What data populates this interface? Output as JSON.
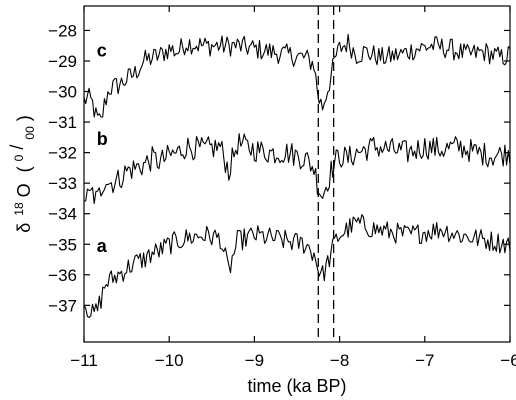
{
  "chart_data": {
    "type": "line",
    "xlabel": "time (ka BP)",
    "ylabel": {
      "prefix": "δ",
      "isotope": "18",
      "element": "O",
      "unit_open": "(",
      "unit_num": "0",
      "unit_den": "00",
      "unit_close": ")"
    },
    "xlim": [
      -11,
      -6
    ],
    "ylim": [
      -38.2,
      -27.2
    ],
    "xticks": [
      -11,
      -10,
      -9,
      -8,
      -7,
      -6
    ],
    "xtick_labels": [
      "−11",
      "−10",
      "−9",
      "−8",
      "−7",
      "−6"
    ],
    "yticks": [
      -37,
      -36,
      -35,
      -34,
      -33,
      -32,
      -31,
      -30,
      -29,
      -28
    ],
    "ytick_labels": [
      "−37",
      "−36",
      "−35",
      "−34",
      "−33",
      "−32",
      "−31",
      "−30",
      "−29",
      "−28"
    ],
    "grid": false,
    "legend": "none",
    "vlines": [
      -8.25,
      -8.07
    ],
    "series": [
      {
        "name": "c",
        "color": "#000000",
        "label_at": [
          -10.85,
          -28.85
        ],
        "noise_amplitude": 0.35,
        "x": [
          -11.0,
          -10.95,
          -10.9,
          -10.85,
          -10.8,
          -10.75,
          -10.7,
          -10.6,
          -10.5,
          -10.4,
          -10.3,
          -10.2,
          -10.1,
          -10.0,
          -9.9,
          -9.8,
          -9.6,
          -9.4,
          -9.2,
          -9.0,
          -8.8,
          -8.6,
          -8.4,
          -8.3,
          -8.25,
          -8.2,
          -8.15,
          -8.1,
          -8.05,
          -8.0,
          -7.9,
          -7.8,
          -7.7,
          -7.5,
          -7.3,
          -7.1,
          -6.9,
          -6.7,
          -6.5,
          -6.3,
          -6.1,
          -6.0
        ],
        "y": [
          -30.3,
          -30.2,
          -30.4,
          -30.9,
          -31.0,
          -30.3,
          -29.9,
          -29.8,
          -29.6,
          -29.4,
          -29.0,
          -28.9,
          -28.8,
          -28.6,
          -28.7,
          -28.4,
          -28.5,
          -28.5,
          -28.5,
          -28.6,
          -28.7,
          -28.8,
          -28.9,
          -29.1,
          -30.2,
          -30.5,
          -30.0,
          -29.5,
          -28.9,
          -28.6,
          -28.4,
          -28.8,
          -28.7,
          -28.9,
          -28.8,
          -28.6,
          -28.5,
          -28.6,
          -28.8,
          -28.7,
          -28.9,
          -28.8
        ]
      },
      {
        "name": "b",
        "color": "#000000",
        "label_at": [
          -10.85,
          -31.75
        ],
        "noise_amplitude": 0.4,
        "x": [
          -11.0,
          -10.95,
          -10.9,
          -10.85,
          -10.8,
          -10.75,
          -10.7,
          -10.6,
          -10.5,
          -10.4,
          -10.3,
          -10.2,
          -10.1,
          -10.0,
          -9.9,
          -9.8,
          -9.6,
          -9.4,
          -9.3,
          -9.2,
          -9.0,
          -8.8,
          -8.6,
          -8.4,
          -8.3,
          -8.25,
          -8.2,
          -8.15,
          -8.1,
          -8.05,
          -8.0,
          -7.9,
          -7.8,
          -7.6,
          -7.4,
          -7.2,
          -7.0,
          -6.8,
          -6.6,
          -6.4,
          -6.2,
          -6.0
        ],
        "y": [
          -33.4,
          -33.5,
          -33.3,
          -33.6,
          -33.2,
          -32.8,
          -33.0,
          -32.9,
          -32.6,
          -32.5,
          -32.4,
          -32.2,
          -32.3,
          -32.1,
          -32.0,
          -31.8,
          -31.9,
          -31.8,
          -32.6,
          -31.7,
          -31.9,
          -32.0,
          -32.0,
          -32.2,
          -32.5,
          -33.1,
          -33.4,
          -33.0,
          -32.6,
          -32.3,
          -32.1,
          -32.2,
          -32.0,
          -31.8,
          -31.9,
          -32.0,
          -31.8,
          -31.9,
          -31.8,
          -32.0,
          -32.1,
          -32.0
        ]
      },
      {
        "name": "a",
        "color": "#000000",
        "label_at": [
          -10.85,
          -35.25
        ],
        "noise_amplitude": 0.35,
        "x": [
          -11.0,
          -10.95,
          -10.9,
          -10.85,
          -10.8,
          -10.75,
          -10.7,
          -10.6,
          -10.5,
          -10.4,
          -10.3,
          -10.2,
          -10.1,
          -10.0,
          -9.9,
          -9.8,
          -9.6,
          -9.4,
          -9.3,
          -9.2,
          -9.0,
          -8.8,
          -8.6,
          -8.4,
          -8.3,
          -8.25,
          -8.2,
          -8.15,
          -8.1,
          -8.05,
          -8.0,
          -7.9,
          -7.8,
          -7.6,
          -7.4,
          -7.2,
          -7.0,
          -6.8,
          -6.6,
          -6.4,
          -6.2,
          -6.0
        ],
        "y": [
          -36.9,
          -37.1,
          -37.3,
          -37.2,
          -36.8,
          -36.3,
          -36.2,
          -36.0,
          -35.8,
          -35.6,
          -35.5,
          -35.3,
          -35.2,
          -35.0,
          -34.9,
          -34.8,
          -34.7,
          -34.8,
          -35.9,
          -34.9,
          -34.7,
          -34.8,
          -34.9,
          -35.0,
          -35.3,
          -35.8,
          -36.0,
          -35.7,
          -35.3,
          -34.9,
          -34.7,
          -34.5,
          -34.3,
          -34.5,
          -34.6,
          -34.7,
          -34.6,
          -34.5,
          -34.7,
          -34.8,
          -34.9,
          -35.0
        ]
      }
    ]
  }
}
